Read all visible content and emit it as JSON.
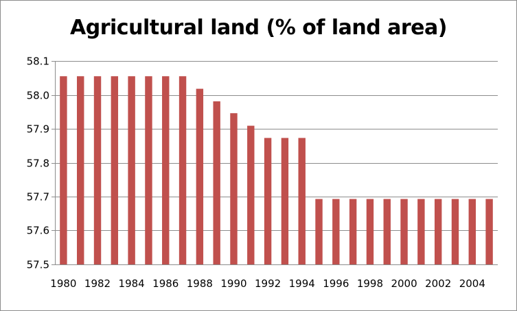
{
  "chart_data": {
    "type": "bar",
    "title": "Agricultural land (% of land area)",
    "xlabel": "",
    "ylabel": "",
    "categories": [
      "1980",
      "1981",
      "1982",
      "1983",
      "1984",
      "1985",
      "1986",
      "1987",
      "1988",
      "1989",
      "1990",
      "1991",
      "1992",
      "1993",
      "1994",
      "1995",
      "1996",
      "1997",
      "1998",
      "1999",
      "2000",
      "2001",
      "2002",
      "2003",
      "2004",
      "2005"
    ],
    "x_tick_labels": [
      "1980",
      "1982",
      "1984",
      "1986",
      "1988",
      "1990",
      "1992",
      "1994",
      "1996",
      "1998",
      "2000",
      "2002",
      "2004"
    ],
    "values": [
      58.055,
      58.055,
      58.055,
      58.055,
      58.055,
      58.055,
      58.055,
      58.055,
      58.018,
      57.981,
      57.946,
      57.909,
      57.873,
      57.873,
      57.873,
      57.693,
      57.693,
      57.693,
      57.693,
      57.693,
      57.693,
      57.693,
      57.693,
      57.693,
      57.693,
      57.693
    ],
    "ylim": [
      57.5,
      58.1
    ],
    "y_ticks": [
      "57.5",
      "57.6",
      "57.7",
      "57.8",
      "57.9",
      "58.0",
      "58.1"
    ],
    "grid": true,
    "legend": "none",
    "bar_color": "#c0504d"
  }
}
